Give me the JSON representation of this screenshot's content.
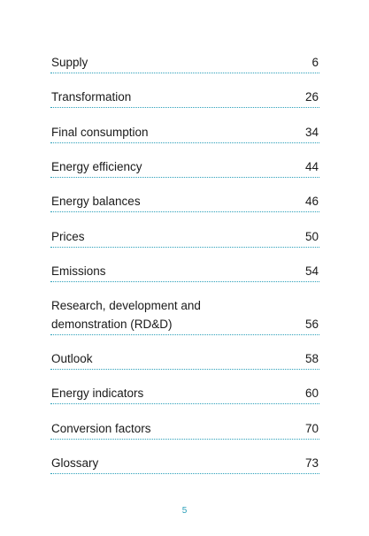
{
  "toc": {
    "entries": [
      {
        "label": "Supply",
        "page": "6"
      },
      {
        "label": "Transformation",
        "page": "26"
      },
      {
        "label": "Final consumption",
        "page": "34"
      },
      {
        "label": "Energy efficiency",
        "page": "44"
      },
      {
        "label": "Energy balances",
        "page": "46"
      },
      {
        "label": "Prices",
        "page": "50"
      },
      {
        "label": "Emissions",
        "page": "54"
      },
      {
        "label": "Research, development and",
        "label_line2": "demonstration (RD&D)",
        "page": "56"
      },
      {
        "label": "Outlook",
        "page": "58"
      },
      {
        "label": "Energy indicators",
        "page": "60"
      },
      {
        "label": "Conversion factors",
        "page": "70"
      },
      {
        "label": "Glossary",
        "page": "73"
      }
    ]
  },
  "footer": {
    "page_number": "5"
  },
  "colors": {
    "accent": "#2a9fb9",
    "text": "#1a1a1a"
  }
}
